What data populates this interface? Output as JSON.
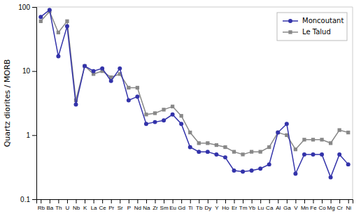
{
  "chart_data": {
    "type": "line",
    "ylabel": "Quartz diorites / MORB",
    "categories": [
      "Rb",
      "Ba",
      "Th",
      "U",
      "Nb",
      "K",
      "La",
      "Ce",
      "Pr",
      "Sr",
      "P",
      "Nd",
      "Na",
      "Zr",
      "Sm",
      "Eu",
      "Gd",
      "Ti",
      "Tb",
      "Dy",
      "Y",
      "Ho",
      "Er",
      "Tm",
      "Yb",
      "Lu",
      "Ca",
      "Al",
      "Ga",
      "V",
      "Mn",
      "Fe",
      "Co",
      "Mg",
      "Cr",
      "Ni"
    ],
    "series": [
      {
        "name": "Moncoutant",
        "color": "#3333aa",
        "marker": "circle",
        "values": [
          70,
          90,
          17,
          50,
          3.0,
          12,
          10,
          11,
          7,
          11,
          3.5,
          4.0,
          1.5,
          1.6,
          1.7,
          2.1,
          1.5,
          0.65,
          0.55,
          0.55,
          0.5,
          0.45,
          0.28,
          0.27,
          0.28,
          0.3,
          0.35,
          1.1,
          1.5,
          0.25,
          0.5,
          0.5,
          0.5,
          0.22,
          0.5,
          0.35
        ]
      },
      {
        "name": "Le Talud",
        "color": "#888888",
        "marker": "square",
        "values": [
          60,
          85,
          40,
          60,
          3.5,
          12,
          9,
          10,
          8,
          9,
          5.5,
          5.5,
          2.1,
          2.2,
          2.5,
          2.8,
          2.0,
          1.1,
          0.75,
          0.75,
          0.7,
          0.65,
          0.55,
          0.5,
          0.55,
          0.55,
          0.65,
          1.1,
          1.0,
          0.6,
          0.85,
          0.85,
          0.85,
          0.75,
          1.2,
          1.1
        ]
      }
    ],
    "log": "y",
    "ylim": [
      0.1,
      100
    ],
    "yticks": [
      0.1,
      1,
      10,
      100
    ],
    "legend": "upper right"
  }
}
